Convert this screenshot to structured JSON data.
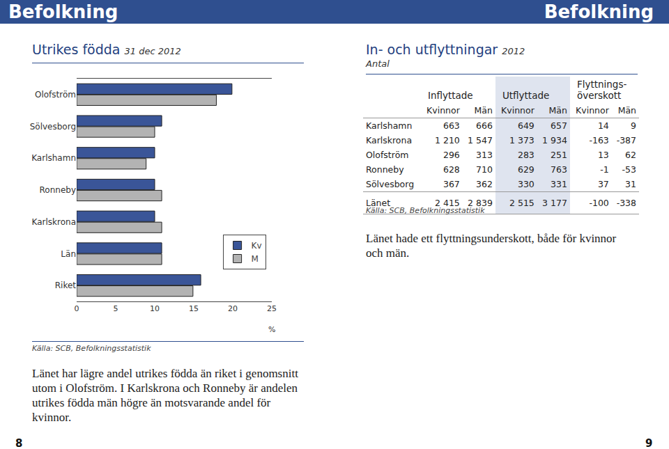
{
  "header": {
    "left": "Befolkning",
    "right": "Befolkning"
  },
  "left": {
    "title": "Utrikes födda",
    "title_date": "31 dec 2012",
    "source": "Källa: SCB, Befolkningsstatistik",
    "text": "Länet har lägre andel utrikes födda än riket i genomsnitt utom i Olofström. I Karlskrona och Ronneby är andelen utrikes födda män högre än motsvarande andel för kvinnor."
  },
  "chart_data": {
    "type": "bar",
    "orientation": "horizontal",
    "xlabel": "%",
    "categories": [
      "Olofström",
      "Sölvesborg",
      "Karlshamn",
      "Ronneby",
      "Karlskrona",
      "Län",
      "Riket"
    ],
    "series": [
      {
        "name": "Kv",
        "color": "#3a5598",
        "values": [
          19.9,
          10.9,
          10.0,
          10.0,
          10.0,
          10.9,
          15.9
        ]
      },
      {
        "name": "M",
        "color": "#b3b3b3",
        "values": [
          17.9,
          10.0,
          8.9,
          10.9,
          10.9,
          10.9,
          14.9
        ]
      }
    ],
    "xlim": [
      0,
      25
    ],
    "xticks": [
      0,
      5,
      10,
      15,
      20,
      25
    ],
    "grid": false,
    "legend": "right"
  },
  "right": {
    "title": "In- och utflyttningar",
    "title_year": "2012",
    "subtitle": "Antal",
    "table": {
      "groups": [
        [
          "Inflyttade"
        ],
        [
          "Utflyttade"
        ],
        [
          "Flyttnings-",
          "överskott"
        ]
      ],
      "subheaders": [
        "Kvinnor",
        "Män"
      ],
      "rows": [
        [
          "Karlshamn",
          "663",
          "666",
          "649",
          "657",
          "14",
          "9"
        ],
        [
          "Karlskrona",
          "1 210",
          "1 547",
          "1 373",
          "1 934",
          "-163",
          "-387"
        ],
        [
          "Olofström",
          "296",
          "313",
          "283",
          "251",
          "13",
          "62"
        ],
        [
          "Ronneby",
          "628",
          "710",
          "629",
          "763",
          "-1",
          "-53"
        ],
        [
          "Sölvesborg",
          "367",
          "362",
          "330",
          "331",
          "37",
          "31"
        ]
      ],
      "total": [
        "Länet",
        "2 415",
        "2 839",
        "2 515",
        "3 177",
        "-100",
        "-338"
      ]
    },
    "source": "Källa: SCB, Befolkningsstatistik",
    "text": "Länet hade ett flyttningsunderskott, både för kvinnor och män."
  },
  "page_numbers": [
    "8",
    "9"
  ]
}
